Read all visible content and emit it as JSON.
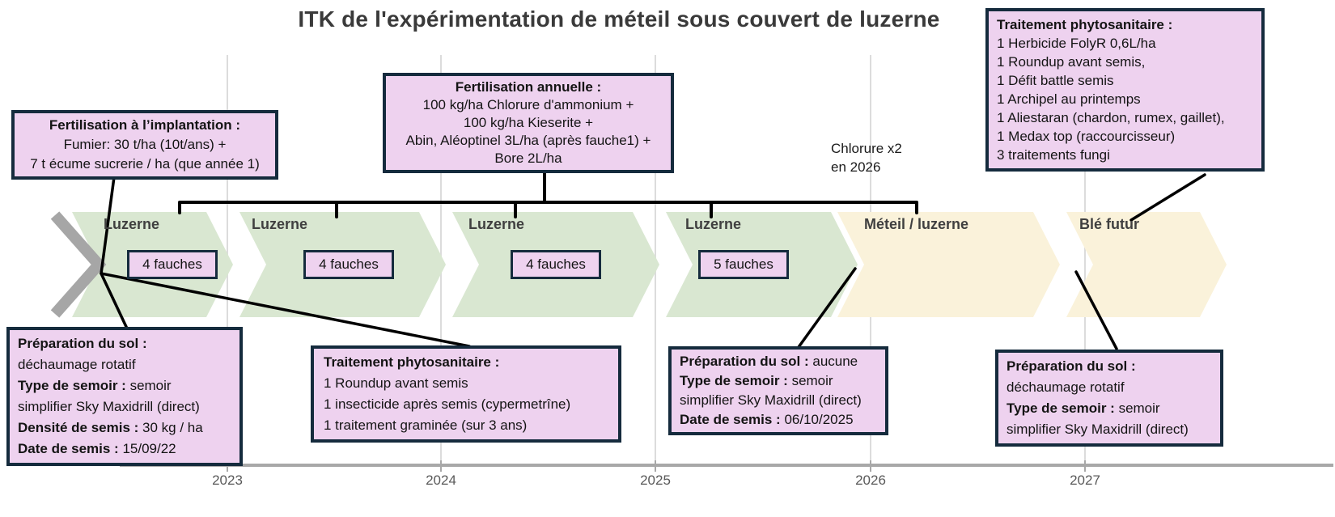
{
  "title": "ITK de l'expérimentation de méteil sous couvert de luzerne",
  "colors": {
    "box_fill": "#eed2ef",
    "box_border": "#152b3d",
    "chevron_green": "#d9e7d1",
    "chevron_cream": "#faf2da",
    "chevron_gray": "#a6a6a6",
    "callout_black": "#000000",
    "axis_gray": "#a8a8a8",
    "gridline_gray": "#dcdcdc",
    "year_text": "#595959"
  },
  "timeline": {
    "phases": [
      {
        "label": "Luzerne",
        "badge": "4 fauches"
      },
      {
        "label": "Luzerne",
        "badge": "4 fauches"
      },
      {
        "label": "Luzerne",
        "badge": "4 fauches"
      },
      {
        "label": "Luzerne",
        "badge": "5 fauches"
      },
      {
        "label": "Méteil / luzerne"
      },
      {
        "label": "Blé futur"
      }
    ],
    "note": {
      "line1": "Chlorure x2",
      "line2": "en 2026"
    }
  },
  "axis": {
    "years": [
      "2023",
      "2024",
      "2025",
      "2026",
      "2027"
    ]
  },
  "boxes": {
    "fert_implantation": {
      "lines": [
        [
          {
            "t": "Fertilisation à l’implantation :",
            "b": true
          }
        ],
        [
          {
            "t": "Fumier: 30 t/ha (10t/ans) +"
          }
        ],
        [
          {
            "t": "7 t écume sucrerie / ha (que année 1)"
          }
        ]
      ]
    },
    "fert_annuelle": {
      "lines": [
        [
          {
            "t": "Fertilisation annuelle :",
            "b": true
          }
        ],
        [
          {
            "t": "100 kg/ha Chlorure d'ammonium +"
          }
        ],
        [
          {
            "t": "100 kg/ha Kieserite +"
          }
        ],
        [
          {
            "t": "Abin, Aléoptinel 3L/ha (après fauche1) +"
          }
        ],
        [
          {
            "t": "Bore 2L/ha"
          }
        ]
      ]
    },
    "trait_phyto_top": {
      "lines": [
        [
          {
            "t": "Traitement phytosanitaire :",
            "b": true
          }
        ],
        [
          {
            "t": "1 Herbicide FolyR 0,6L/ha"
          }
        ],
        [
          {
            "t": "1 Roundup avant semis,"
          }
        ],
        [
          {
            "t": "1 Défit battle semis"
          }
        ],
        [
          {
            "t": "1 Archipel au printemps"
          }
        ],
        [
          {
            "t": "1 Aliestaran (chardon, rumex, gaillet),"
          }
        ],
        [
          {
            "t": "1 Medax top (raccourcisseur)"
          }
        ],
        [
          {
            "t": "3 traitements fungi"
          }
        ]
      ]
    },
    "prep_sol_implantation": {
      "lines": [
        [
          {
            "t": "Préparation du sol :",
            "b": true
          }
        ],
        [
          {
            "t": "déchaumage rotatif"
          }
        ],
        [
          {
            "t": "Type de semoir :",
            "b": true
          },
          {
            "t": " semoir"
          }
        ],
        [
          {
            "t": "simplifier Sky Maxidrill (direct)"
          }
        ],
        [
          {
            "t": "Densité de semis :",
            "b": true
          },
          {
            "t": " 30 kg / ha"
          }
        ],
        [
          {
            "t": "Date de semis :",
            "b": true
          },
          {
            "t": " 15/09/22"
          }
        ]
      ]
    },
    "trait_phyto_bottom": {
      "lines": [
        [
          {
            "t": "Traitement phytosanitaire :",
            "b": true
          }
        ],
        [
          {
            "t": "1 Roundup avant semis"
          }
        ],
        [
          {
            "t": "1 insecticide après semis (cypermetrîne)"
          }
        ],
        [
          {
            "t": "1 traitement graminée (sur 3 ans)"
          }
        ]
      ]
    },
    "prep_sol_meteil": {
      "lines": [
        [
          {
            "t": "Préparation du sol :",
            "b": true
          },
          {
            "t": " aucune"
          }
        ],
        [
          {
            "t": "Type de semoir :",
            "b": true
          },
          {
            "t": " semoir"
          }
        ],
        [
          {
            "t": "simplifier Sky Maxidrill (direct)"
          }
        ],
        [
          {
            "t": "Date de semis :",
            "b": true
          },
          {
            "t": " 06/10/2025"
          }
        ]
      ]
    },
    "prep_sol_ble": {
      "lines": [
        [
          {
            "t": "Préparation du sol :",
            "b": true
          }
        ],
        [
          {
            "t": "déchaumage rotatif"
          }
        ],
        [
          {
            "t": "Type de semoir :",
            "b": true
          },
          {
            "t": " semoir"
          }
        ],
        [
          {
            "t": "simplifier Sky Maxidrill (direct)"
          }
        ]
      ]
    }
  }
}
